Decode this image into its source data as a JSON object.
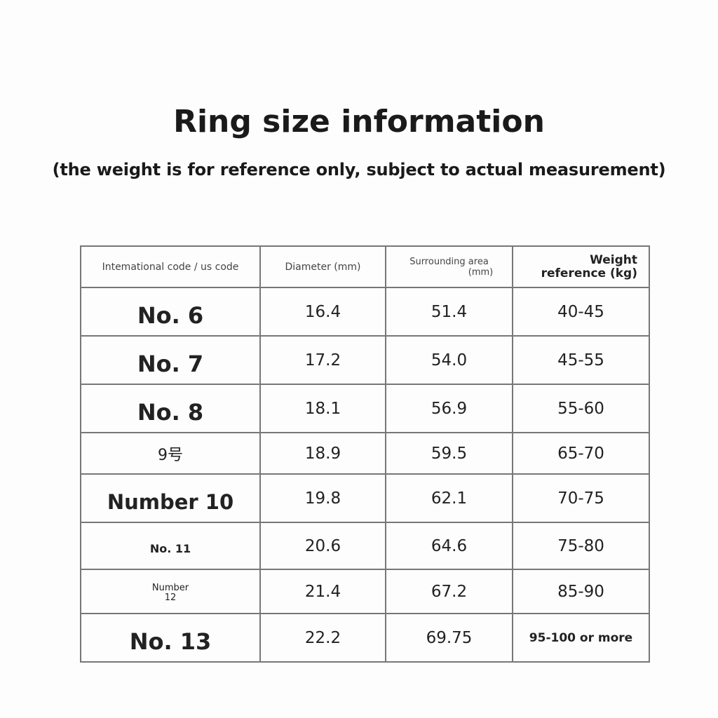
{
  "title": "Ring size information",
  "subtitle": "(the weight is for reference only, subject to actual measurement)",
  "table": {
    "headers": [
      "Intemational code / us code",
      "Diameter (mm)",
      "Surrounding area (mm)",
      "Weight reference (kg)"
    ],
    "rows": [
      [
        "No. 6",
        "16.4",
        "51.4",
        "40-45"
      ],
      [
        "No. 7",
        "17.2",
        "54.0",
        "45-55"
      ],
      [
        "No. 8",
        "18.1",
        "56.9",
        "55-60"
      ],
      [
        "9号",
        "18.9",
        "59.5",
        "65-70"
      ],
      [
        "Number 10",
        "19.8",
        "62.1",
        "70-75"
      ],
      [
        "No. 11",
        "20.6",
        "64.6",
        "75-80"
      ],
      [
        "Number 12",
        "21.4",
        "67.2",
        "85-90"
      ],
      [
        "No. 13",
        "22.2",
        "69.75",
        "95-100 or more"
      ]
    ]
  }
}
